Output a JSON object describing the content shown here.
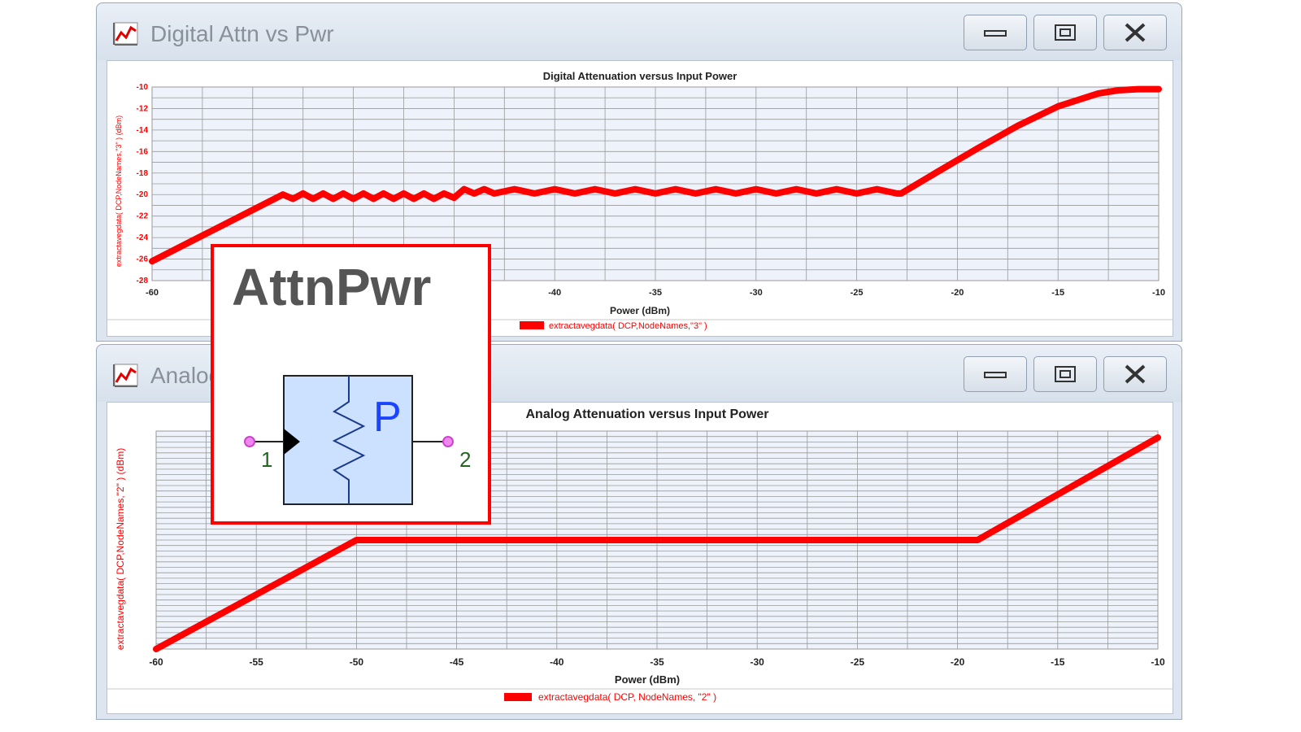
{
  "windows": [
    {
      "title": "Digital Attn vs Pwr",
      "chart_data": {
        "type": "line",
        "title": "Digital Attenuation versus Input Power",
        "xlabel": "Power (dBm)",
        "ylabel": "extractavegdata( DCP,NodeNames,\"3\" ) (dBm)",
        "xlim": [
          -60,
          -10
        ],
        "ylim": [
          -28,
          -10
        ],
        "x_ticks": [
          "-60",
          "-55",
          "-50",
          "-45",
          "-40",
          "-35",
          "-30",
          "-25",
          "-20",
          "-15",
          "-10"
        ],
        "y_ticks": [
          "-10",
          "-12",
          "-14",
          "-16",
          "-18",
          "-20",
          "-22",
          "-24",
          "-26",
          "-28"
        ],
        "grid": true,
        "legend_position": "bottom",
        "series": [
          {
            "name": "extractavegdata( DCP,NodeNames,\"3\" )",
            "color": "#ff0000",
            "x": [
              -60,
              -53.5,
              -53,
              -52.5,
              -52,
              -51.5,
              -51,
              -50.5,
              -50,
              -49.5,
              -49,
              -48.5,
              -48,
              -47.5,
              -47,
              -46.5,
              -46,
              -45.5,
              -45,
              -44.5,
              -44,
              -43.5,
              -43,
              -42,
              -41,
              -40,
              -39,
              -38,
              -37,
              -36,
              -35,
              -34,
              -33,
              -32,
              -31,
              -30,
              -29,
              -28,
              -27,
              -26,
              -25,
              -24,
              -23,
              -22.8,
              -21,
              -19,
              -17,
              -15,
              -13,
              -12,
              -11,
              -10
            ],
            "y": [
              -26.2,
              -20,
              -20.4,
              -19.9,
              -20.4,
              -19.9,
              -20.4,
              -19.9,
              -20.4,
              -19.9,
              -20.4,
              -19.9,
              -20.4,
              -19.9,
              -20.4,
              -19.9,
              -20.4,
              -19.9,
              -20.3,
              -19.5,
              -19.9,
              -19.5,
              -19.9,
              -19.5,
              -19.9,
              -19.5,
              -19.9,
              -19.5,
              -19.9,
              -19.5,
              -19.9,
              -19.5,
              -19.9,
              -19.5,
              -19.9,
              -19.5,
              -19.9,
              -19.5,
              -19.9,
              -19.5,
              -19.9,
              -19.5,
              -19.9,
              -19.9,
              -17.9,
              -15.7,
              -13.6,
              -11.8,
              -10.6,
              -10.3,
              -10.2,
              -10.2
            ]
          }
        ]
      }
    },
    {
      "title": "Analog Attn vs Pwr",
      "chart_data": {
        "type": "line",
        "title": "Analog Attenuation versus Input Power",
        "xlabel": "Power (dBm)",
        "ylabel": "extractavegdata( DCP,NodeNames,\"2\" ) (dBm)",
        "xlim": [
          -60,
          -10
        ],
        "ylim": [
          0,
          1
        ],
        "x_ticks": [
          "-60",
          "-55",
          "-50",
          "-45",
          "-40",
          "-35",
          "-30",
          "-25",
          "-20",
          "-15",
          "-10"
        ],
        "grid": true,
        "legend_position": "bottom",
        "series": [
          {
            "name": "extractavegdata( DCP, NodeNames, \"2\" )",
            "color": "#ff0000",
            "x": [
              -60,
              -50,
              -19,
              -10
            ],
            "y": [
              0,
              0.5,
              0.5,
              0.97
            ]
          }
        ]
      }
    }
  ],
  "symbol": {
    "name": "AttnPwr",
    "pin1": "1",
    "pin2": "2",
    "label": "P"
  }
}
